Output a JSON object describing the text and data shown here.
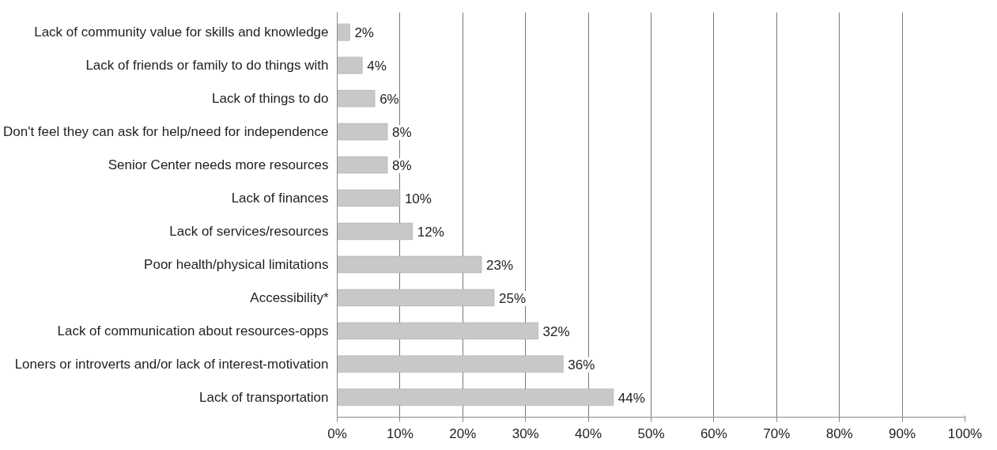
{
  "chart_data": {
    "type": "bar",
    "orientation": "horizontal",
    "categories": [
      "Lack of community value for skills and knowledge",
      "Lack of friends or family to do things with",
      "Lack of things to do",
      "Don't feel they can ask for help/need for independence",
      "Senior Center needs more resources",
      "Lack of finances",
      "Lack of services/resources",
      "Poor health/physical limitations",
      "Accessibility*",
      "Lack of communication about resources-opps",
      "Loners or introverts and/or lack of interest-motivation",
      "Lack of transportation"
    ],
    "values": [
      2,
      4,
      6,
      8,
      8,
      10,
      12,
      23,
      25,
      32,
      36,
      44
    ],
    "value_labels": [
      "2%",
      "4%",
      "6%",
      "8%",
      "8%",
      "10%",
      "12%",
      "23%",
      "25%",
      "32%",
      "36%",
      "44%"
    ],
    "color": "#c8c8c8",
    "xlim": [
      0,
      100
    ],
    "xticks": [
      {
        "value": 0,
        "label": "0%"
      },
      {
        "value": 10,
        "label": "10%"
      },
      {
        "value": 20,
        "label": "20%"
      },
      {
        "value": 30,
        "label": "30%"
      },
      {
        "value": 40,
        "label": "40%"
      },
      {
        "value": 50,
        "label": "50%"
      },
      {
        "value": 60,
        "label": "60%"
      },
      {
        "value": 70,
        "label": "70%"
      },
      {
        "value": 80,
        "label": "80%"
      },
      {
        "value": 90,
        "label": "90%"
      },
      {
        "value": 100,
        "label": "100%"
      }
    ],
    "grid": "x"
  }
}
